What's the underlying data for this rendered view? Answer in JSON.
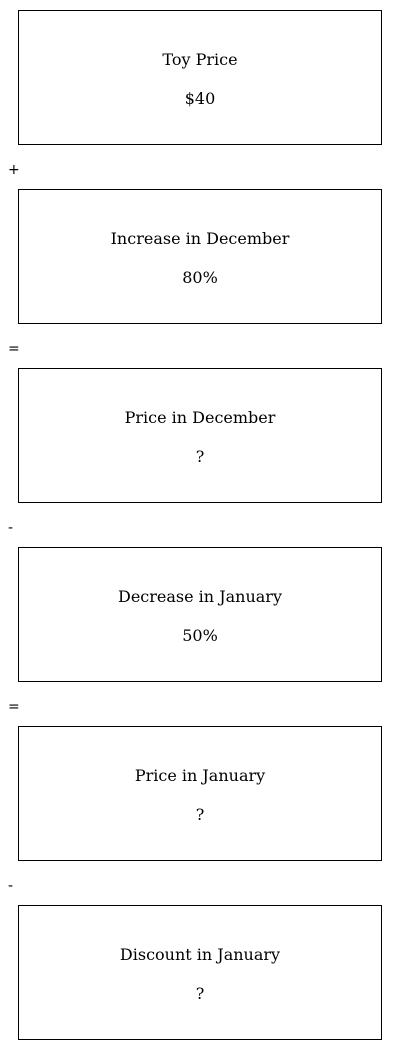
{
  "boxes": [
    {
      "label": "Toy Price",
      "value": "$40"
    },
    {
      "label": "Increase in December",
      "value": "80%"
    },
    {
      "label": "Price in December",
      "value": "?"
    },
    {
      "label": "Decrease in January",
      "value": "50%"
    },
    {
      "label": "Price in January",
      "value": "?"
    },
    {
      "label": "Discount in January",
      "value": "?"
    }
  ],
  "operators": [
    "+",
    "=",
    "-",
    "=",
    "-"
  ]
}
